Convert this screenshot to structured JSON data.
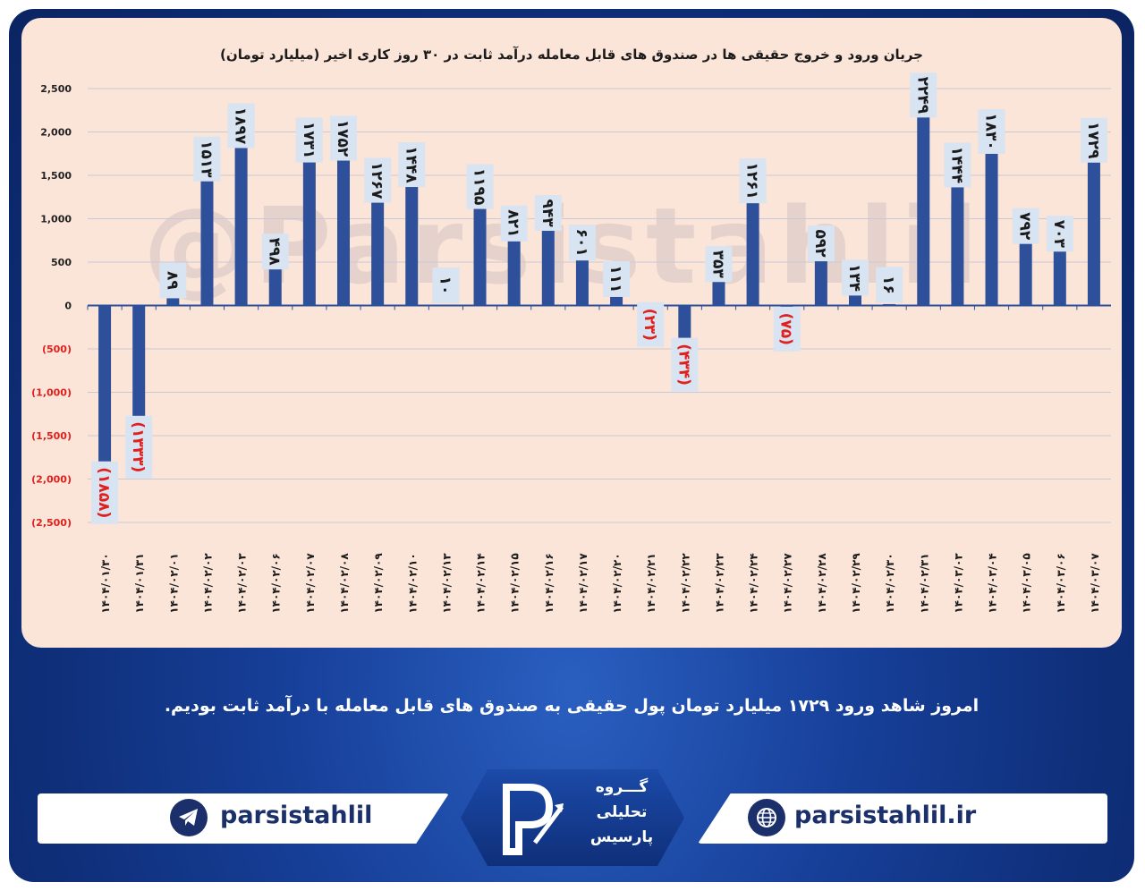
{
  "watermark": "@Parsistahlil",
  "message": "امروز شاهد ورود ۱۷۲۹ میلیارد تومان پول حقیقی به صندوق های قابل معامله با درآمد ثابت بودیم.",
  "footer": {
    "telegram": "parsistahlil",
    "website": "parsistahlil.ir",
    "logo_lines": [
      "گـــروه",
      "تحلیلی",
      "پارسیس"
    ]
  },
  "colors": {
    "bar": "#2e4f9a",
    "negative_label": "#e0201c",
    "panel": "#fbe4d8",
    "label_box": "#d8e4f2"
  },
  "chart_data": {
    "type": "bar",
    "title": "جریان ورود و خروج حقیقی ها در صندوق های قابل معامله درآمد ثابت در ۳۰ روز کاری اخیر (میلیارد تومان)",
    "xlabel": "",
    "ylabel": "",
    "ylim": [
      -2500,
      2500
    ],
    "yticks": [
      2500,
      2000,
      1500,
      1000,
      500,
      0,
      -500,
      -1000,
      -1500,
      -2000,
      -2500
    ],
    "ytick_labels": [
      "2,500",
      "2,000",
      "1,500",
      "1,000",
      "500",
      "0",
      "(500)",
      "(1,000)",
      "(1,500)",
      "(2,000)",
      "(2,500)"
    ],
    "grid": true,
    "legend": "none",
    "categories": [
      "۱۴۰۴/۰۱/۳۰",
      "۱۴۰۴/۰۱/۳۱",
      "۱۴۰۴/۰۲/۰۱",
      "۱۴۰۴/۰۲/۰۲",
      "۱۴۰۴/۰۲/۰۳",
      "۱۴۰۴/۰۲/۰۶",
      "۱۴۰۴/۰۲/۰۷",
      "۱۴۰۴/۰۲/۰۸",
      "۱۴۰۴/۰۲/۰۹",
      "۱۴۰۴/۰۲/۱۰",
      "۱۴۰۴/۰۲/۱۳",
      "۱۴۰۴/۰۲/۱۴",
      "۱۴۰۴/۰۲/۱۵",
      "۱۴۰۴/۰۲/۱۶",
      "۱۴۰۴/۰۲/۱۷",
      "۱۴۰۴/۰۲/۲۰",
      "۱۴۰۴/۰۲/۲۱",
      "۱۴۰۴/۰۲/۲۲",
      "۱۴۰۴/۰۲/۲۳",
      "۱۴۰۴/۰۲/۲۴",
      "۱۴۰۴/۰۲/۲۷",
      "۱۴۰۴/۰۲/۲۸",
      "۱۴۰۴/۰۲/۲۹",
      "۱۴۰۴/۰۲/۳۰",
      "۱۴۰۴/۰۲/۳۱",
      "۱۴۰۴/۰۳/۰۳",
      "۱۴۰۴/۰۳/۰۴",
      "۱۴۰۴/۰۳/۰۵",
      "۱۴۰۴/۰۳/۰۶",
      "۱۴۰۴/۰۳/۰۷"
    ],
    "values": [
      -1858,
      -1333,
      89,
      1513,
      1897,
      498,
      1731,
      1752,
      1267,
      1448,
      10,
      1195,
      821,
      943,
      601,
      111,
      -23,
      -434,
      353,
      1261,
      -75,
      592,
      134,
      16,
      2249,
      1444,
      1830,
      792,
      703,
      1729
    ],
    "data_labels": [
      "(۱۸۵۸)",
      "(۱۳۳۳)",
      "۸۹",
      "۱۵۱۳",
      "۱۸۹۷",
      "۴۹۸",
      "۱۷۳۱",
      "۱۷۵۲",
      "۱۲۶۷",
      "۱۴۴۸",
      "۱۰",
      "۱۱۹۵",
      "۸۲۱",
      "۹۴۳",
      "۶۰۱",
      "۱۱۱",
      "(۲۳)",
      "(۴۳۴)",
      "۳۵۳",
      "۱۲۶۱",
      "(۷۵)",
      "۵۹۲",
      "۱۳۴",
      "۱۶",
      "۲۲۴۹",
      "۱۴۴۴",
      "۱۸۳۰",
      "۷۹۲",
      "۷۰۳",
      "۱۷۲۹"
    ]
  }
}
